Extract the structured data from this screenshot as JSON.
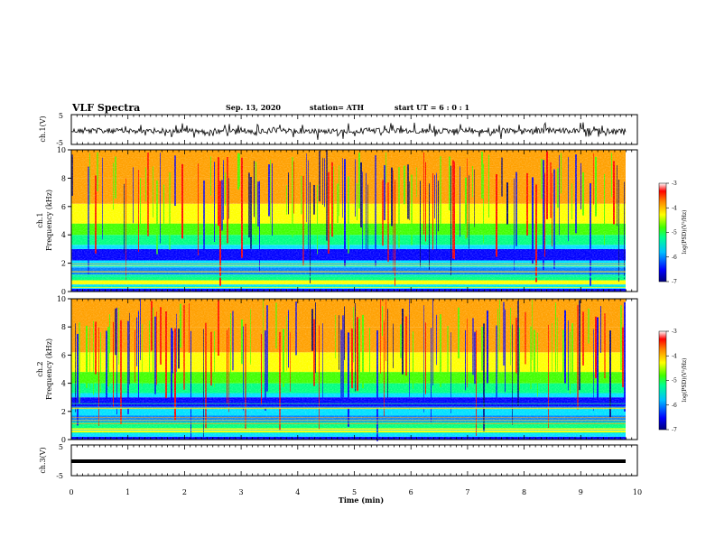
{
  "header": {
    "title": "VLF Spectra",
    "date": "Sep. 13, 2020",
    "station": "station= ATH",
    "start": "start  UT =  6 : 0 : 1"
  },
  "chart_data": [
    {
      "type": "line",
      "panel": "ch1-waveform",
      "ylabel": "ch.1(V)",
      "ylim": [
        -5,
        5
      ],
      "y_ticks": [
        "5",
        "-5"
      ],
      "xlim": [
        0,
        10
      ]
    },
    {
      "type": "heatmap",
      "panel": "ch1-spectrogram",
      "ylabel": "ch.1\nFrequency  (kHz)",
      "ylim": [
        0,
        10
      ],
      "y_ticks": [
        "0",
        "2",
        "4",
        "6",
        "8",
        "10"
      ],
      "xlim": [
        0,
        10
      ],
      "colorbar": {
        "label": "log(PSD)(V²/Hz)",
        "ticks": [
          "-3",
          "-4",
          "-5",
          "-6",
          "-7"
        ],
        "range": [
          -7,
          -3
        ]
      }
    },
    {
      "type": "heatmap",
      "panel": "ch2-spectrogram",
      "ylabel": "ch.2\nFrequency  (kHz)",
      "ylim": [
        0,
        10
      ],
      "y_ticks": [
        "0",
        "2",
        "4",
        "6",
        "8",
        "10"
      ],
      "xlim": [
        0,
        10
      ],
      "colorbar": {
        "label": "log(PSD)(V²/Hz)",
        "ticks": [
          "-3",
          "-4",
          "-5",
          "-6",
          "-7"
        ],
        "range": [
          -7,
          -3
        ]
      }
    },
    {
      "type": "line",
      "panel": "ch3-waveform",
      "ylabel": "ch.3(V)",
      "ylim": [
        -5,
        5
      ],
      "y_ticks": [
        "5",
        "-5"
      ],
      "xlim": [
        0,
        10
      ]
    }
  ],
  "x_axis": {
    "label": "Time  (min)",
    "ticks": [
      "0",
      "1",
      "2",
      "3",
      "4",
      "5",
      "6",
      "7",
      "8",
      "9",
      "10"
    ]
  },
  "colors": {
    "spectrum": [
      "#00007a",
      "#0000ff",
      "#0080ff",
      "#00e0ff",
      "#00ff80",
      "#40ff00",
      "#ffff00",
      "#ffa000",
      "#ff0000",
      "#ffffff"
    ]
  }
}
